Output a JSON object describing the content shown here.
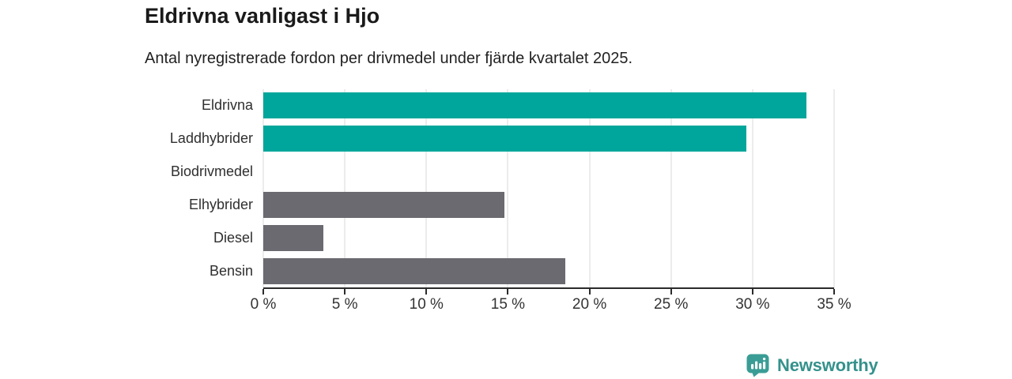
{
  "chart": {
    "title": "Eldrivna vanligast i Hjo",
    "subtitle": "Antal nyregistrerade fordon per drivmedel under fjärde kvartalet 2025."
  },
  "chart_data": {
    "type": "bar",
    "orientation": "horizontal",
    "title": "Eldrivna vanligast i Hjo",
    "subtitle": "Antal nyregistrerade fordon per drivmedel under fjärde kvartalet 2025.",
    "categories": [
      "Eldrivna",
      "Laddhybrider",
      "Biodrivmedel",
      "Elhybrider",
      "Diesel",
      "Bensin"
    ],
    "values": [
      33.3,
      29.6,
      0,
      14.8,
      3.7,
      18.5
    ],
    "unit": "%",
    "xlim": [
      0,
      35
    ],
    "x_tick_values": [
      0,
      5,
      10,
      15,
      20,
      25,
      30,
      35
    ],
    "x_tick_labels": [
      "0 %",
      "5 %",
      "10 %",
      "15 %",
      "20 %",
      "25 %",
      "30 %",
      "35 %"
    ],
    "grid": "vertical-gridlines",
    "legend": "none",
    "bar_colors": [
      "#00a69b",
      "#00a69b",
      "#6a6a70",
      "#6a6a70",
      "#6a6a70",
      "#6a6a70"
    ],
    "highlight_color": "#00a69b",
    "default_color": "#6a6a70"
  },
  "branding": {
    "name": "Newsworthy",
    "icon": "newsworthy-bar-chart-speech-bubble-icon",
    "icon_color": "#3a9d95",
    "text_color": "#35918c"
  }
}
